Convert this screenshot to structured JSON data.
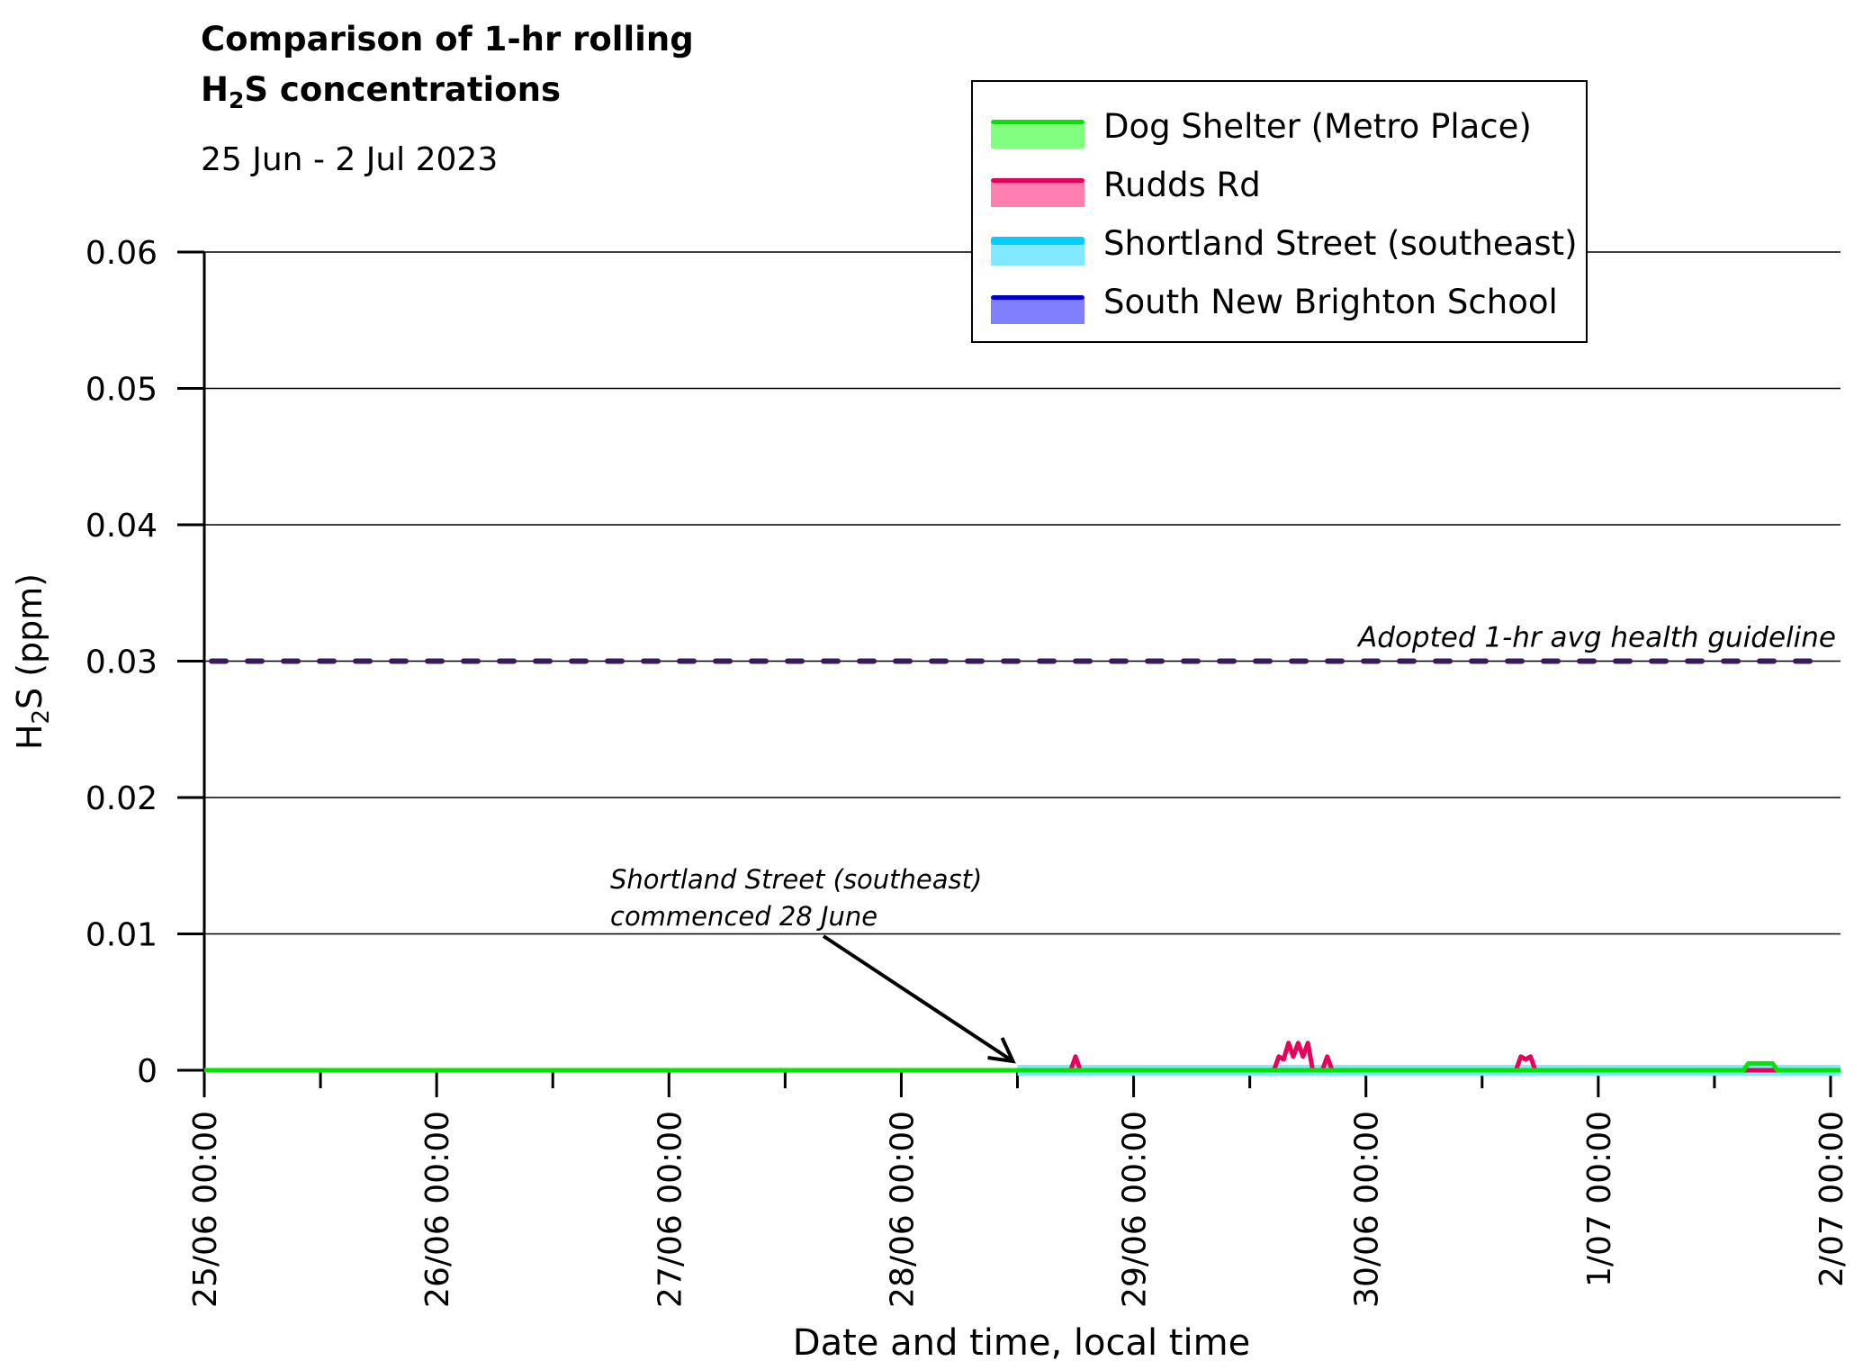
{
  "chart_data": {
    "type": "line",
    "title_line1": "Comparison of 1-hr rolling",
    "title_line2": {
      "pre": "H",
      "sub": "2",
      "post": "S concentrations"
    },
    "subtitle": "25 Jun - 2 Jul 2023",
    "xlabel": "Date and time, local time",
    "ylabel": {
      "pre": "H",
      "sub": "2",
      "post": "S (ppm)"
    },
    "x_unit": "hours since 25/06 00:00",
    "xlim": [
      0,
      169
    ],
    "ylim": [
      0,
      0.06
    ],
    "y_ticks": [
      0,
      0.01,
      0.02,
      0.03,
      0.04,
      0.05,
      0.06
    ],
    "y_tick_labels": [
      "0",
      "0.01",
      "0.02",
      "0.03",
      "0.04",
      "0.05",
      "0.06"
    ],
    "x_ticks": [
      0,
      24,
      48,
      72,
      96,
      120,
      144,
      168
    ],
    "x_tick_labels": [
      "25/06 00:00",
      "26/06 00:00",
      "27/06 00:00",
      "28/06 00:00",
      "29/06 00:00",
      "30/06 00:00",
      "1/07 00:00",
      "2/07 00:00"
    ],
    "x_minor_ticks": [
      12,
      36,
      60,
      84,
      108,
      132,
      156
    ],
    "grid": "horizontal",
    "legend_position": "top-right",
    "series": [
      {
        "name": "Dog Shelter (Metro Place)",
        "line_color": "#00e600",
        "fill_color": "#80ff80",
        "start": 0,
        "end": 169,
        "points": [
          [
            159,
            0
          ],
          [
            159.5,
            0.0005
          ],
          [
            162,
            0.0005
          ],
          [
            162.5,
            0
          ]
        ]
      },
      {
        "name": "Rudds Rd",
        "line_color": "#e8005a",
        "fill_color": "#ff80b0",
        "start": 0,
        "end": 169,
        "points": [
          [
            89.5,
            0
          ],
          [
            90,
            0.001
          ],
          [
            90.5,
            0
          ],
          [
            110.5,
            0
          ],
          [
            111,
            0.001
          ],
          [
            111.5,
            0.0008
          ],
          [
            112,
            0.002
          ],
          [
            112.5,
            0.001
          ],
          [
            113,
            0.002
          ],
          [
            113.5,
            0.001
          ],
          [
            114,
            0.002
          ],
          [
            114.5,
            0
          ],
          [
            115.5,
            0
          ],
          [
            116,
            0.001
          ],
          [
            116.5,
            0
          ],
          [
            135.5,
            0
          ],
          [
            136,
            0.001
          ],
          [
            136.5,
            0.0008
          ],
          [
            137,
            0.001
          ],
          [
            137.5,
            0
          ]
        ]
      },
      {
        "name": "Shortland Street (southeast)",
        "line_color": "#00ccff",
        "fill_color": "#80e8ff",
        "start": 84,
        "end": 169,
        "points": []
      },
      {
        "name": "South New Brighton School",
        "line_color": "#0000c8",
        "fill_color": "#8080ff",
        "start": 0,
        "end": 169,
        "points": []
      }
    ],
    "guideline": {
      "value": 0.03,
      "label": "Adopted 1-hr avg health guideline",
      "color": "#3a1a5c"
    },
    "annotation": {
      "line1": "Shortland Street (southeast)",
      "line2": "commenced 28 June",
      "points_to_hour": 84,
      "points_to_value": 0
    }
  }
}
